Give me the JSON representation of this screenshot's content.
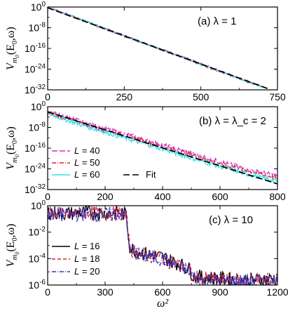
{
  "chart_data": [
    {
      "type": "line",
      "panel_label": "(a) λ = 1",
      "ylabel": "V_{m_0}(E_0,ω)",
      "xlabel": "",
      "xlim": [
        0,
        750
      ],
      "ylim_log10": [
        -32,
        0
      ],
      "yscale": "log",
      "xticks": [
        0,
        250,
        500,
        750
      ],
      "yticks_log10": [
        0,
        -8,
        -16,
        -24,
        -32
      ],
      "series": [
        {
          "color": "#cc33cc",
          "dash": "8,3",
          "x": [
            0,
            100,
            200,
            300,
            400,
            500,
            600,
            700
          ],
          "y_log10": [
            0,
            -4.4,
            -8.8,
            -13.2,
            -17.5,
            -21.9,
            -26.3,
            -30.7
          ]
        },
        {
          "color": "#e0203a",
          "dash": "6,2,1,2",
          "x": [
            0,
            100,
            200,
            300,
            400,
            500,
            600,
            700
          ],
          "y_log10": [
            0,
            -4.5,
            -9.0,
            -13.4,
            -17.8,
            -22.2,
            -26.6,
            -31.0
          ]
        },
        {
          "color": "#33e0e8",
          "dash": "",
          "x": [
            0,
            100,
            200,
            300,
            400,
            500,
            600,
            700
          ],
          "y_log10": [
            0,
            -4.4,
            -8.9,
            -13.3,
            -17.7,
            -22.1,
            -26.5,
            -30.9
          ]
        },
        {
          "color": "#000000",
          "dash": "9,4",
          "x": [
            0,
            720
          ],
          "y_log10": [
            -0.3,
            -31.6
          ]
        }
      ]
    },
    {
      "type": "line",
      "panel_label": "(b) λ = λ_c = 2",
      "ylabel": "V_{m_0}(E_0,ω)",
      "xlabel": "",
      "xlim": [
        0,
        800
      ],
      "ylim_log10": [
        -32,
        0
      ],
      "yscale": "log",
      "xticks": [
        0,
        200,
        400,
        600,
        800
      ],
      "yticks_log10": [
        0,
        -8,
        -16,
        -24,
        -32
      ],
      "legend": [
        {
          "label": "L = 40",
          "color": "#cc33cc",
          "dash": "8,3"
        },
        {
          "label": "L = 50",
          "color": "#e0203a",
          "dash": "6,2,1,2"
        },
        {
          "label": "L = 60",
          "color": "#33e0e8",
          "dash": ""
        },
        {
          "label": "Fit",
          "color": "#000000",
          "dash": "9,4"
        }
      ],
      "series": [
        {
          "color": "#cc33cc",
          "dash": "8,3",
          "x": [
            0,
            100,
            200,
            300,
            400,
            500,
            600,
            700,
            800
          ],
          "y_log10": [
            -2.0,
            -5.2,
            -8.6,
            -11.5,
            -14.8,
            -18.1,
            -21.3,
            -24.4,
            -26.8
          ]
        },
        {
          "color": "#e0203a",
          "dash": "6,2,1,2",
          "x": [
            0,
            100,
            200,
            300,
            400,
            500,
            600,
            700,
            800
          ],
          "y_log10": [
            -2.2,
            -5.6,
            -9.0,
            -12.2,
            -15.4,
            -18.7,
            -22.0,
            -24.8,
            -27.5
          ]
        },
        {
          "color": "#33e0e8",
          "dash": "",
          "x": [
            0,
            100,
            200,
            300,
            400,
            500,
            600,
            700,
            800
          ],
          "y_log10": [
            -2.5,
            -6.4,
            -9.8,
            -13.1,
            -16.3,
            -19.8,
            -23.1,
            -26.2,
            -28.8
          ]
        },
        {
          "color": "#000000",
          "dash": "9,4",
          "x": [
            0,
            800
          ],
          "y_log10": [
            -2.0,
            -29.8
          ]
        }
      ]
    },
    {
      "type": "line",
      "panel_label": "(c) λ = 10",
      "ylabel": "V_{m_0}(E_0,ω)",
      "xlabel": "ω²",
      "xlim": [
        0,
        1200
      ],
      "ylim_log10": [
        -6,
        0
      ],
      "yscale": "log",
      "xticks": [
        0,
        300,
        600,
        900,
        1200
      ],
      "yticks_log10": [
        0,
        -2,
        -4,
        -6
      ],
      "legend": [
        {
          "label": "L = 16",
          "color": "#000000",
          "dash": ""
        },
        {
          "label": "L = 18",
          "color": "#e0203a",
          "dash": "5,3"
        },
        {
          "label": "L = 20",
          "color": "#3333cc",
          "dash": "6,2,1,2"
        }
      ],
      "series": [
        {
          "color": "#000000",
          "dash": "",
          "x": [
            0,
            100,
            200,
            300,
            380,
            410,
            430,
            500,
            600,
            700,
            740,
            760,
            800,
            900,
            1000,
            1100,
            1200
          ],
          "y_log10": [
            -0.5,
            -0.6,
            -0.5,
            -0.6,
            -0.5,
            -0.7,
            -3.2,
            -3.6,
            -3.9,
            -4.5,
            -4.8,
            -5.3,
            -5.4,
            -5.5,
            -5.6,
            -5.6,
            -5.5
          ]
        },
        {
          "color": "#e0203a",
          "dash": "5,3",
          "x": [
            0,
            100,
            200,
            300,
            380,
            410,
            430,
            500,
            600,
            700,
            740,
            760,
            800,
            900,
            1000,
            1100,
            1200
          ],
          "y_log10": [
            -0.5,
            -0.7,
            -0.5,
            -0.6,
            -0.6,
            -0.8,
            -3.3,
            -3.7,
            -4.0,
            -4.6,
            -4.9,
            -5.4,
            -5.5,
            -5.6,
            -5.7,
            -5.6,
            -5.6
          ]
        },
        {
          "color": "#3333cc",
          "dash": "6,2,1,2",
          "x": [
            0,
            100,
            200,
            300,
            380,
            410,
            430,
            500,
            600,
            700,
            740,
            760,
            800,
            900,
            1000,
            1100,
            1200
          ],
          "y_log10": [
            -0.6,
            -0.7,
            -0.6,
            -0.7,
            -0.6,
            -0.8,
            -3.4,
            -3.8,
            -4.0,
            -4.7,
            -4.9,
            -5.4,
            -5.5,
            -5.7,
            -5.7,
            -5.7,
            -5.6
          ]
        }
      ]
    }
  ]
}
